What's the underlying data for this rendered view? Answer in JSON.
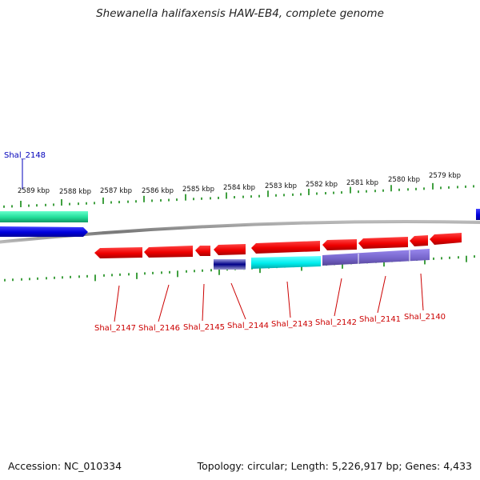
{
  "title": "Shewanella halifaxensis HAW-EB4, complete genome",
  "footer": {
    "accession": "Accession: NC_010334",
    "summary": "Topology: circular; Length: 5,226,917 bp; Genes: 4,433"
  },
  "colors": {
    "forward_label": "#0000bb",
    "reverse_label": "#cc0000",
    "tick": "#118811",
    "backbone": "#888888"
  },
  "scale_labels": [
    "2589 kbp",
    "2588 kbp",
    "2587 kbp",
    "2586 kbp",
    "2585 kbp",
    "2584 kbp",
    "2583 kbp",
    "2582 kbp",
    "2581 kbp",
    "2580 kbp",
    "2579 kbp"
  ],
  "forward_genes": [
    {
      "label": "Shal_2148",
      "color": "#0000dd"
    }
  ],
  "reverse_genes": [
    {
      "label": "Shal_2147",
      "color": "#ee0000"
    },
    {
      "label": "Shal_2146",
      "color": "#ee0000"
    },
    {
      "label": "Shal_2145",
      "color": "#ee0000"
    },
    {
      "label": "Shal_2144",
      "color": "#ee0000"
    },
    {
      "label": "Shal_2143",
      "color": "#ee0000"
    },
    {
      "label": "Shal_2142",
      "color": "#ee0000"
    },
    {
      "label": "Shal_2141",
      "color": "#ee0000"
    },
    {
      "label": "Shal_2140",
      "color": "#ee0000"
    }
  ],
  "feature_colors": {
    "teal": "#22dd99",
    "cyan": "#00eeee",
    "purple": "#7766cc",
    "navy": "#000088"
  }
}
